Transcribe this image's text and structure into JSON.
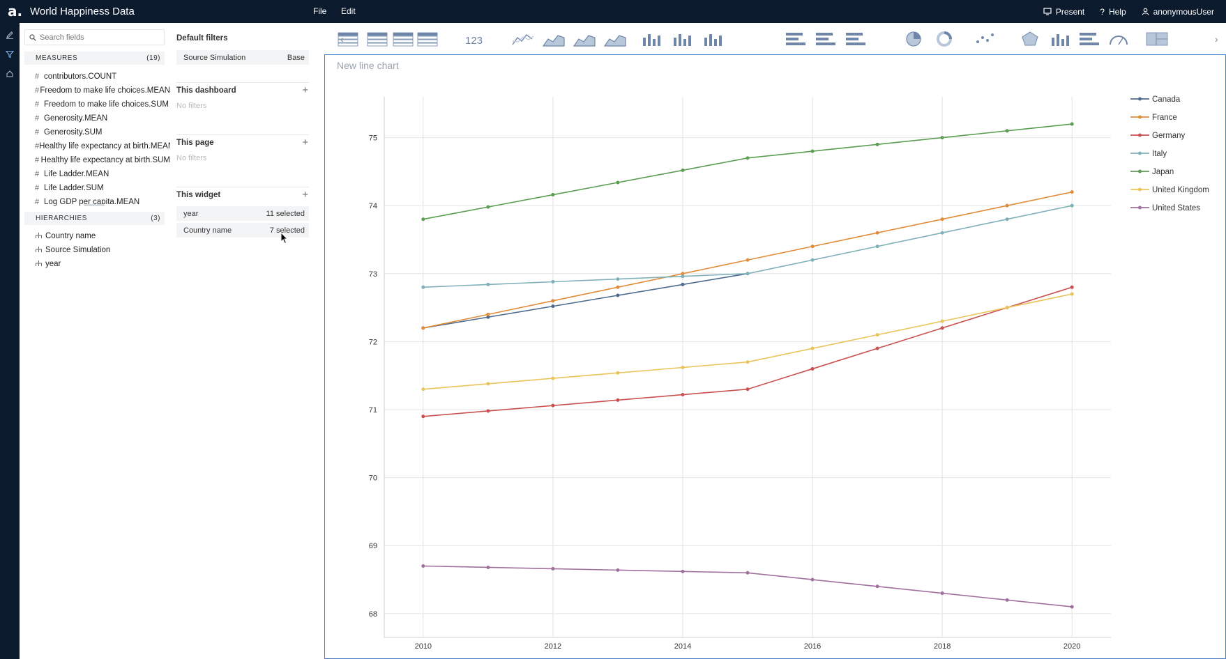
{
  "app": {
    "title": "World Happiness Data",
    "menu": [
      "File",
      "Edit"
    ]
  },
  "topright": {
    "present": "Present",
    "help": "Help",
    "user": "anonymousUser"
  },
  "fields_panel": {
    "search_placeholder": "Search fields",
    "measures_label": "MEASURES",
    "measures_count": "(19)",
    "measures": [
      "contributors.COUNT",
      "Freedom to make life choices.MEAN",
      "Freedom to make life choices.SUM",
      "Generosity.MEAN",
      "Generosity.SUM",
      "Healthy life expectancy at birth.MEAN",
      "Healthy life expectancy at birth.SUM",
      "Life Ladder.MEAN",
      "Life Ladder.SUM",
      "Log GDP per capita.MEAN"
    ],
    "hierarchies_label": "HIERARCHIES",
    "hierarchies_count": "(3)",
    "hierarchies": [
      "Country name",
      "Source Simulation",
      "year"
    ]
  },
  "filters_panel": {
    "default_title": "Default filters",
    "default_chip": {
      "label": "Source Simulation",
      "value": "Base"
    },
    "dashboard_title": "This dashboard",
    "dashboard_empty": "No filters",
    "page_title": "This page",
    "page_empty": "No filters",
    "widget_title": "This widget",
    "widget_chips": [
      {
        "label": "year",
        "value": "11 selected"
      },
      {
        "label": "Country name",
        "value": "7 selected"
      }
    ]
  },
  "toolbar": {
    "kpi_label": "123",
    "icons": [
      "table-icon",
      "tree-table-icon",
      "pivot-table-icon",
      "pivot-table-2-icon",
      "kpi-icon",
      "line-chart-icon",
      "area-chart-icon",
      "stacked-area-icon",
      "area-100-icon",
      "column-chart-icon",
      "clustered-column-icon",
      "stacked-column-icon",
      "combo-chart-icon",
      "bar-chart-icon",
      "clustered-bar-icon",
      "stacked-bar-icon",
      "pie-chart-icon",
      "donut-chart-icon",
      "scatter-chart-icon",
      "radar-chart-icon",
      "waterfall-chart-icon",
      "bullet-chart-icon",
      "gauge-chart-icon",
      "treemap-icon"
    ]
  },
  "widget": {
    "title": "New line chart"
  },
  "colors": {
    "topbar": "#0c1a2e",
    "accent": "#3d7ec7"
  },
  "chart_data": {
    "type": "line",
    "title": "",
    "xlabel": "",
    "ylabel": "",
    "x": [
      2010,
      2011,
      2012,
      2013,
      2014,
      2015,
      2016,
      2017,
      2018,
      2019,
      2020
    ],
    "x_ticks": [
      2010,
      2012,
      2014,
      2016,
      2018,
      2020
    ],
    "y_ticks": [
      68,
      69,
      70,
      71,
      72,
      73,
      74,
      75
    ],
    "xlim": [
      2009.4,
      2020.6
    ],
    "ylim": [
      67.65,
      75.6
    ],
    "grid": true,
    "legend": "top-right",
    "series": [
      {
        "name": "Canada",
        "color": "#4e6a8f",
        "values": [
          72.2,
          72.36,
          72.52,
          72.68,
          72.84,
          73.0,
          null,
          null,
          null,
          null,
          null
        ]
      },
      {
        "name": "France",
        "color": "#e08c3a",
        "values": [
          72.2,
          72.4,
          72.6,
          72.8,
          73.0,
          73.2,
          73.4,
          73.6,
          73.8,
          74.0,
          74.2
        ]
      },
      {
        "name": "Germany",
        "color": "#c9504f",
        "values": [
          70.9,
          70.98,
          71.06,
          71.14,
          71.22,
          71.3,
          71.6,
          71.9,
          72.2,
          72.5,
          72.8
        ]
      },
      {
        "name": "Italy",
        "color": "#7fb0b8",
        "values": [
          72.8,
          72.84,
          72.88,
          72.92,
          72.96,
          73.0,
          73.2,
          73.4,
          73.6,
          73.8,
          74.0
        ]
      },
      {
        "name": "Japan",
        "color": "#5b9d52",
        "values": [
          73.8,
          73.98,
          74.16,
          74.34,
          74.52,
          74.7,
          74.8,
          74.9,
          75.0,
          75.1,
          75.2
        ]
      },
      {
        "name": "United Kingdom",
        "color": "#e9c45a",
        "values": [
          71.3,
          71.38,
          71.46,
          71.54,
          71.62,
          71.7,
          71.9,
          72.1,
          72.3,
          72.5,
          72.7
        ]
      },
      {
        "name": "United States",
        "color": "#a0709d",
        "values": [
          68.7,
          68.68,
          68.66,
          68.64,
          68.62,
          68.6,
          68.5,
          68.4,
          68.3,
          68.2,
          68.1
        ]
      }
    ]
  }
}
